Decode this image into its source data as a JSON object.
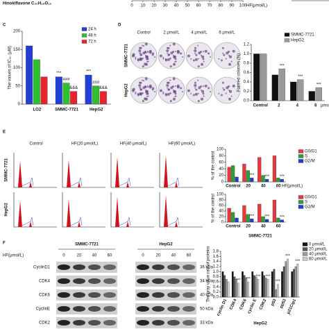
{
  "top": {
    "compound": "Hinokiflavone C₃₀H₁₈O₁₀",
    "ticks": [
      0,
      10,
      20,
      30,
      40,
      50,
      60,
      70,
      80,
      90,
      100
    ],
    "axis_label": "HF(μmol/L)"
  },
  "panels": {
    "letters": [
      "C",
      "D",
      "E",
      "F"
    ],
    "colony": {
      "columns": [
        "Control",
        "2 μmol/L",
        "4 μmol/L",
        "6 μmol/L"
      ],
      "rows": [
        "SMMC-7721",
        "HepG2"
      ]
    },
    "flow": {
      "columns": [
        "Control",
        "HF(20 μmol/L)",
        "HF(40 μmol/L)",
        "HF(60 μmol/L)"
      ],
      "rows": [
        "SMMC-7721",
        "HepG2"
      ]
    },
    "blot": {
      "header": "HF(μmol/L)",
      "groups": [
        "SMMC-7721",
        "HepG2"
      ],
      "doses": [
        "0",
        "20",
        "40",
        "60"
      ],
      "proteins": [
        "CyclinD1",
        "CDK4",
        "CDK6",
        "CyclinE",
        "CDK2"
      ],
      "sizes": [
        "36 kDa",
        "34 kDa",
        "40 kDa",
        "50 kDa",
        "33 kDa"
      ]
    },
    "bottom_title": "HepG2"
  },
  "chart_data": [
    {
      "type": "bar",
      "y_label": "The values of IC₅₀ (μM)",
      "categories": [
        "LO2",
        "SMMC-7721",
        "HepG2"
      ],
      "series": [
        {
          "name": "24 h",
          "color": "#1f3fd8",
          "values": [
            160,
            75,
            80
          ]
        },
        {
          "name": "48 h",
          "color": "#2ec02e",
          "values": [
            122,
            58,
            50
          ]
        },
        {
          "name": "72 h",
          "color": "#e8232e",
          "values": [
            75,
            35,
            35
          ]
        }
      ],
      "ylim": [
        0,
        200
      ],
      "yticks": [
        0,
        50,
        100,
        150,
        200
      ],
      "annotations": [
        "***",
        "###",
        "&&&"
      ]
    },
    {
      "type": "bar",
      "y_label": "Formed colonies (%)",
      "x_label": "μmol/L",
      "categories": [
        "Control",
        "2",
        "4",
        "6"
      ],
      "series": [
        {
          "name": "SMMC-7721",
          "color": "#111111",
          "values": [
            1.0,
            0.55,
            0.4,
            0.2
          ]
        },
        {
          "name": "HepG2",
          "color": "#9a9a9a",
          "values": [
            1.0,
            0.68,
            0.45,
            0.28
          ]
        }
      ],
      "ylim": [
        0,
        1.2
      ],
      "yticks": [
        {
          "value": 0,
          "label": "0.0"
        },
        0.2,
        0.4,
        0.6,
        0.8,
        {
          "value": 1,
          "label": "1.0"
        },
        1.2
      ],
      "significance": "***"
    },
    {
      "type": "bar",
      "y_label": "% of the control",
      "x_label": "HF(μmol/L)",
      "categories": [
        "Control",
        "20",
        "40",
        "60"
      ],
      "series": [
        {
          "name": "G0/G1",
          "color": "#e8383d",
          "values": [
            45,
            55,
            75,
            80
          ]
        },
        {
          "name": "S",
          "color": "#2e9e3a",
          "values": [
            50,
            35,
            20,
            12
          ]
        },
        {
          "name": "G2/M",
          "color": "#1d3fcf",
          "values": [
            15,
            12,
            8,
            8
          ]
        }
      ],
      "ylim": [
        0,
        100
      ],
      "yticks": [
        0,
        20,
        40,
        60,
        80,
        100
      ],
      "significance": "***"
    },
    {
      "type": "bar",
      "y_label": "% of the control",
      "categories": [
        "Control",
        "20",
        "40",
        "60"
      ],
      "series": [
        {
          "name": "G0/G1",
          "color": "#e8383d",
          "values": [
            50,
            60,
            65,
            80
          ]
        },
        {
          "name": "S",
          "color": "#2e9e3a",
          "values": [
            35,
            28,
            20,
            15
          ]
        },
        {
          "name": "G2/M",
          "color": "#1d3fcf",
          "values": [
            15,
            12,
            10,
            8
          ]
        }
      ],
      "ylim": [
        0,
        100
      ],
      "yticks": [
        0,
        20,
        40,
        60,
        80,
        100
      ],
      "significance": "***"
    },
    {
      "type": "bar",
      "title": "SMMC-7721",
      "y_label": "The gray value ratioof proteins",
      "categories": [
        "cyclin D1",
        "CDK4",
        "CDK6",
        "cyclin E",
        "CDK2",
        "p53",
        "pp53",
        "p21Cip1"
      ],
      "series": [
        {
          "name": "0 μmol/L",
          "color": "#111111",
          "values": [
            1,
            1,
            1,
            1,
            1,
            1,
            1,
            1
          ]
        },
        {
          "name": "20 μmol/L",
          "color": "#555555",
          "values": [
            0.85,
            0.8,
            0.85,
            0.85,
            0.85,
            1.1,
            1.2,
            1.1
          ]
        },
        {
          "name": "40 μmol/L",
          "color": "#999999",
          "values": [
            0.7,
            0.7,
            0.75,
            0.8,
            0.75,
            0.3,
            1.4,
            1.2
          ]
        },
        {
          "name": "60 μmol/L",
          "color": "#cccccc",
          "values": [
            0.6,
            0.55,
            0.6,
            0.7,
            0.7,
            0.5,
            1.5,
            1.3
          ]
        }
      ],
      "ylim": [
        0,
        1.8
      ],
      "yticks": [
        {
          "value": 0,
          "label": "0.0"
        },
        0.2,
        0.4,
        0.6,
        0.8,
        {
          "value": 1,
          "label": "1.0"
        },
        1.2,
        1.4,
        1.6,
        1.8
      ],
      "significance": "***"
    }
  ]
}
